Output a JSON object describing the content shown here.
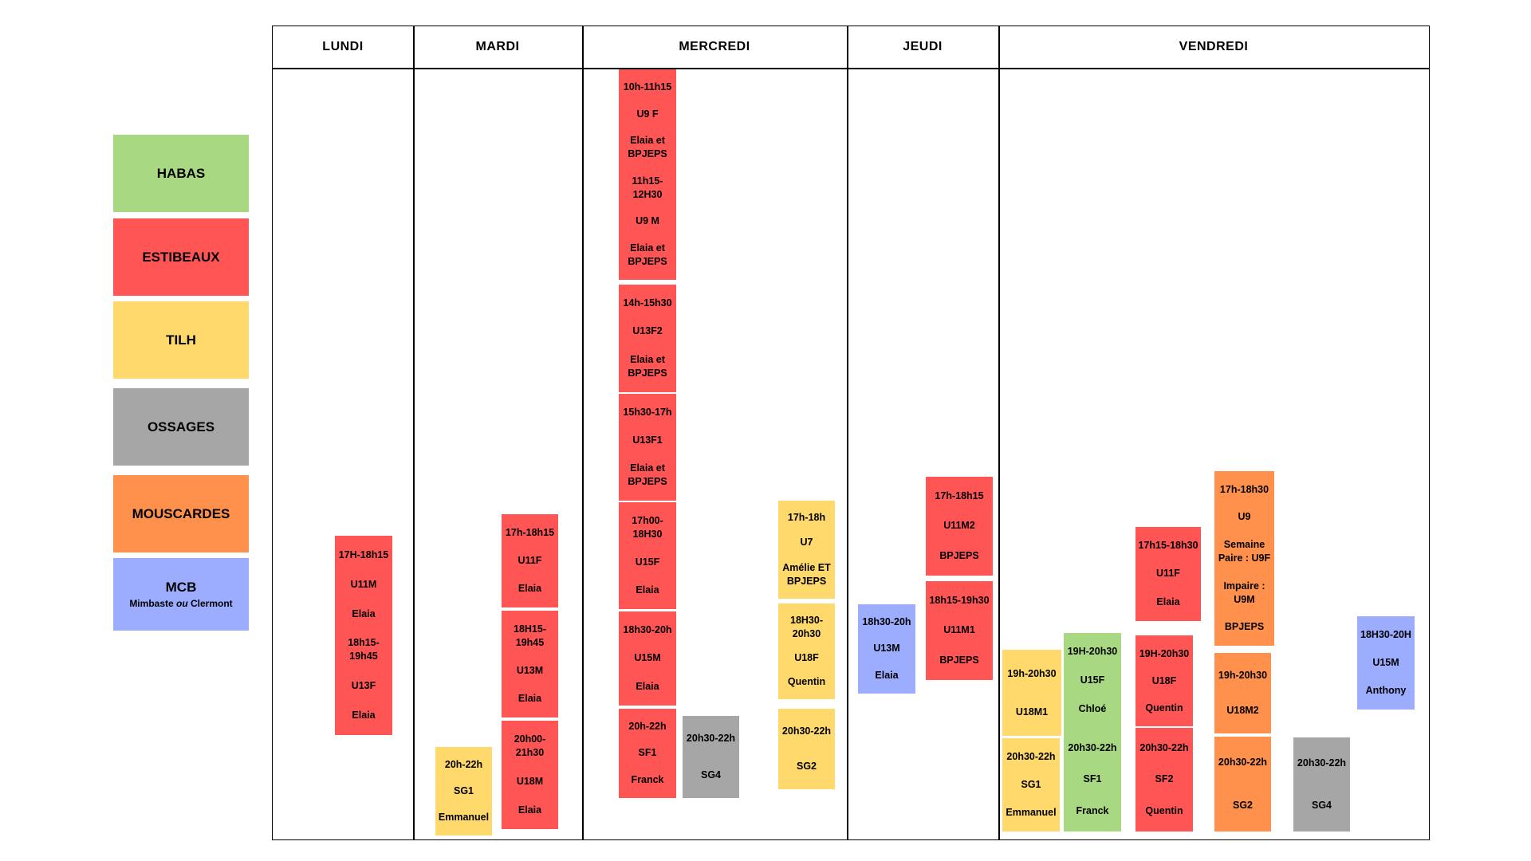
{
  "legend": {
    "habas": "HABAS",
    "estibeaux": "ESTIBEAUX",
    "tilh": "TILH",
    "ossages": "OSSAGES",
    "mouscardes": "MOUSCARDES",
    "mcb": "MCB",
    "mcb_sub_a": "Mimbaste ",
    "mcb_sub_b": "ou",
    "mcb_sub_c": " Clermont"
  },
  "colors": {
    "habas": "#a8d982",
    "estibeaux": "#ff5555",
    "tilh": "#ffd96b",
    "ossages": "#a6a6a6",
    "mouscardes": "#ff914d",
    "mcb": "#9cacff"
  },
  "days": [
    "LUNDI",
    "MARDI",
    "MERCREDI",
    "JEUDI",
    "VENDREDI"
  ],
  "sessions": {
    "lundi_1": [
      "17H-18h15",
      "U11M",
      "Elaia",
      "18h15-\n19h45",
      "U13F",
      "Elaia"
    ],
    "mardi_1": [
      "17h-18h15",
      "U11F",
      "Elaia"
    ],
    "mardi_2": [
      "18H15-\n19h45",
      "U13M",
      "Elaia"
    ],
    "mardi_3": [
      "20h00-\n21h30",
      "U18M",
      "Elaia"
    ],
    "mardi_4": [
      "20h-22h",
      "SG1",
      "Emmanuel"
    ],
    "mercredi_1": [
      "10h-11h15",
      "U9 F",
      "Elaia et\nBPJEPS",
      "11h15-\n12H30",
      "U9 M",
      "Elaia et\nBPJEPS"
    ],
    "mercredi_2": [
      "14h-15h30",
      "U13F2",
      "Elaia et\nBPJEPS"
    ],
    "mercredi_3": [
      "15h30-17h",
      "U13F1",
      "Elaia et\nBPJEPS"
    ],
    "mercredi_4": [
      "17h00-\n18H30",
      "U15F",
      "Elaia"
    ],
    "mercredi_5": [
      "18h30-20h",
      "U15M",
      "Elaia"
    ],
    "mercredi_6": [
      "20h-22h",
      "SF1",
      "Franck"
    ],
    "mercredi_7": [
      "20h30-22h",
      "SG4"
    ],
    "mercredi_8": [
      "17h-18h",
      "U7",
      "Amélie ET\nBPJEPS"
    ],
    "mercredi_9": [
      "18H30-\n20h30",
      "U18F",
      "Quentin"
    ],
    "mercredi_10": [
      "20h30-22h",
      "SG2"
    ],
    "jeudi_1": [
      "18h30-20h",
      "U13M",
      "Elaia"
    ],
    "jeudi_2": [
      "17h-18h15",
      "U11M2",
      "BPJEPS"
    ],
    "jeudi_3": [
      "18h15-19h30",
      "U11M1",
      "BPJEPS"
    ],
    "vendredi_1": [
      "19h-20h30",
      "U18M1"
    ],
    "vendredi_2": [
      "20h30-22h",
      "SG1",
      "Emmanuel"
    ],
    "vendredi_3": [
      "19H-20h30",
      "U15F",
      "Chloé"
    ],
    "vendredi_4": [
      "20h30-22h",
      "SF1",
      "Franck"
    ],
    "vendredi_5": [
      "17h15-18h30",
      "U11F",
      "Elaia"
    ],
    "vendredi_6": [
      "19H-20h30",
      "U18F",
      "Quentin"
    ],
    "vendredi_7": [
      "20h30-22h",
      "SF2",
      "Quentin"
    ],
    "vendredi_8": [
      "17h-18h30",
      "U9",
      "Semaine\nPaire : U9F",
      "Impaire :\nU9M",
      "BPJEPS"
    ],
    "vendredi_9": [
      "19h-20h30",
      "U18M2"
    ],
    "vendredi_10": [
      "20h30-22h",
      "SG2"
    ],
    "vendredi_11": [
      "20h30-22h",
      "SG4"
    ],
    "vendredi_12": [
      "18H30-20H",
      "U15M",
      "Anthony"
    ]
  }
}
